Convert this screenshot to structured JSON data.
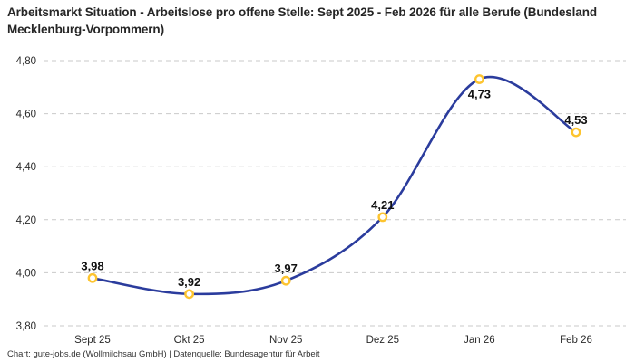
{
  "header": {
    "title": "Arbeitsmarkt Situation - Arbeitslose pro offene Stelle: Sept 2025 - Feb 2026 für alle Berufe (Bundesland Mecklenburg-Vorpommern)"
  },
  "footer": {
    "credit": "Chart: gute-jobs.de (Wollmilchsau GmbH) | Datenquelle: Bundesagentur für Arbeit"
  },
  "colors": {
    "line": "#2b3c9d",
    "marker_ring": "#fdc42f",
    "marker_fill": "#ffffff",
    "grid": "#c9c9c9",
    "title_text": "#262626",
    "axis_text": "#2b2b2b",
    "value_text": "#111111"
  },
  "chart_data": {
    "type": "line",
    "title": "Arbeitsmarkt Situation - Arbeitslose pro offene Stelle: Sept 2025 - Feb 2026 für alle Berufe (Bundesland Mecklenburg-Vorpommern)",
    "categories": [
      "Sept 25",
      "Okt 25",
      "Nov 25",
      "Dez 25",
      "Jan 26",
      "Feb 26"
    ],
    "values": [
      3.98,
      3.92,
      3.97,
      4.21,
      4.73,
      4.53
    ],
    "value_labels": [
      "3,98",
      "3,92",
      "3,97",
      "4,21",
      "4,73",
      "4,53"
    ],
    "value_label_positions": [
      "above",
      "above",
      "above",
      "above",
      "below",
      "above"
    ],
    "xlabel": "",
    "ylabel": "",
    "ylim": [
      3.8,
      4.8
    ],
    "yticks": [
      3.8,
      4.0,
      4.2,
      4.4,
      4.6,
      4.8
    ],
    "ytick_labels": [
      "3,80",
      "4,00",
      "4,20",
      "4,40",
      "4,60",
      "4,80"
    ],
    "grid": "horizontal-dashed",
    "legend": "none",
    "marker": "open-circle-gold",
    "line_style": "smooth"
  }
}
